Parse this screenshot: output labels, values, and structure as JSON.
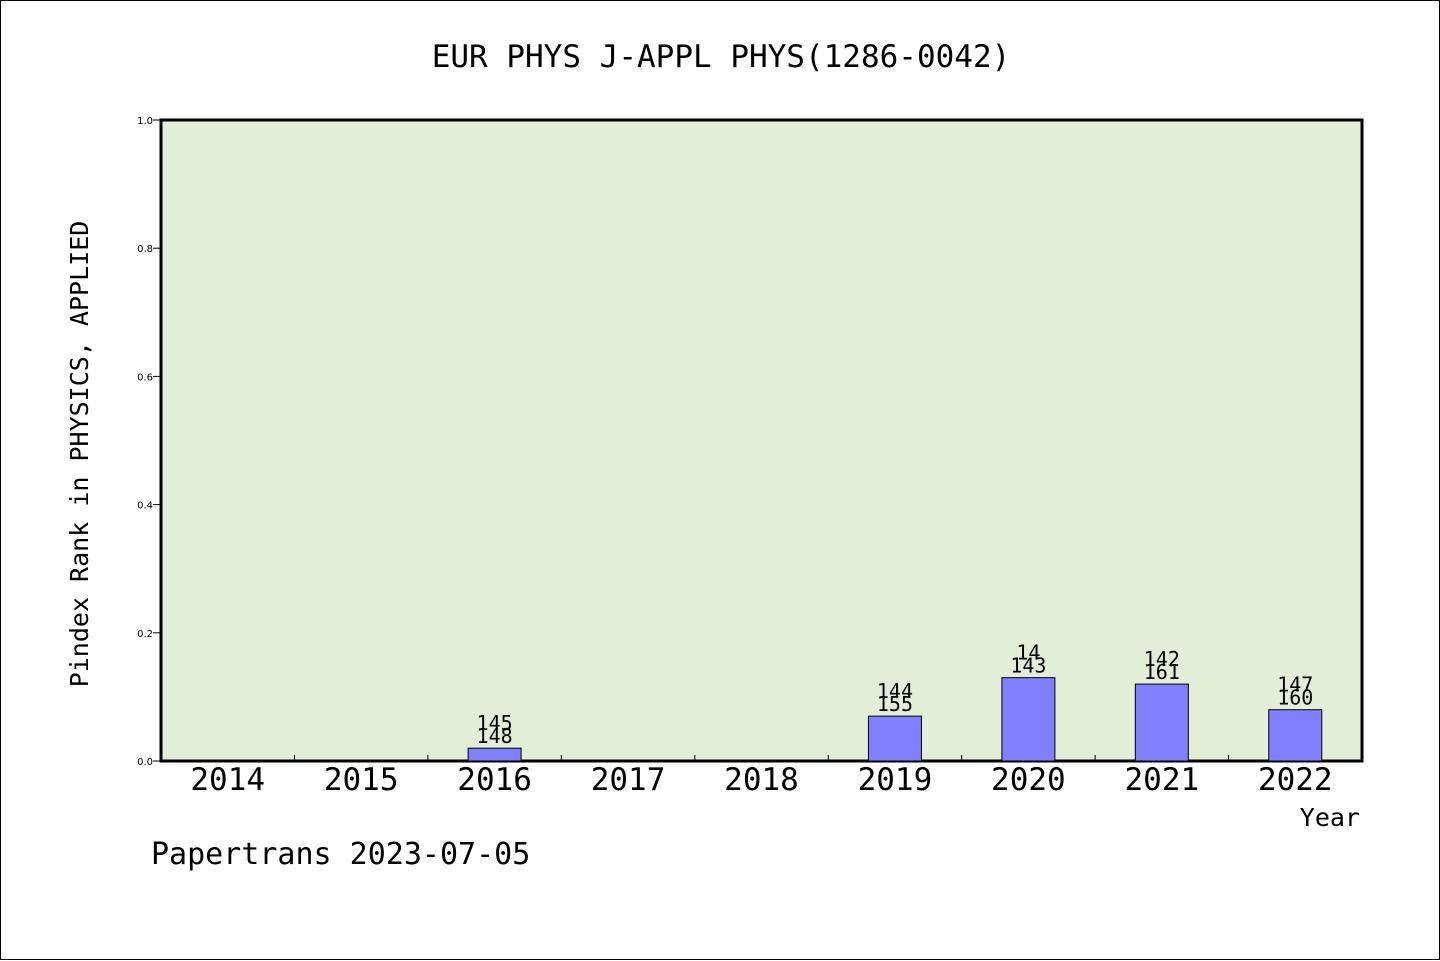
{
  "chart_data": {
    "type": "bar",
    "title": "EUR PHYS J-APPL PHYS(1286-0042)",
    "xlabel": "Year",
    "ylabel": "Pindex Rank in PHYSICS, APPLIED",
    "footer": "Papertrans 2023-07-05",
    "categories": [
      "2014",
      "2015",
      "2016",
      "2017",
      "2018",
      "2019",
      "2020",
      "2021",
      "2022"
    ],
    "values": [
      0,
      0,
      0.02,
      0,
      0,
      0.07,
      0.13,
      0.12,
      0.08
    ],
    "bar_labels": [
      null,
      null,
      [
        "145",
        "148"
      ],
      null,
      null,
      [
        "144",
        "155"
      ],
      [
        "14",
        "143"
      ],
      [
        "142",
        "161"
      ],
      [
        "147",
        "160"
      ]
    ],
    "ylim": [
      0,
      1.0
    ],
    "yticks": [
      "0.0",
      "0.2",
      "0.4",
      "0.6",
      "0.8",
      "1.0"
    ],
    "grid": false,
    "colors": {
      "plot_background": "#e2efd6",
      "bar_fill": "#8080ff",
      "bar_stroke": "#000000",
      "axis": "#000000",
      "text": "#000000"
    }
  }
}
